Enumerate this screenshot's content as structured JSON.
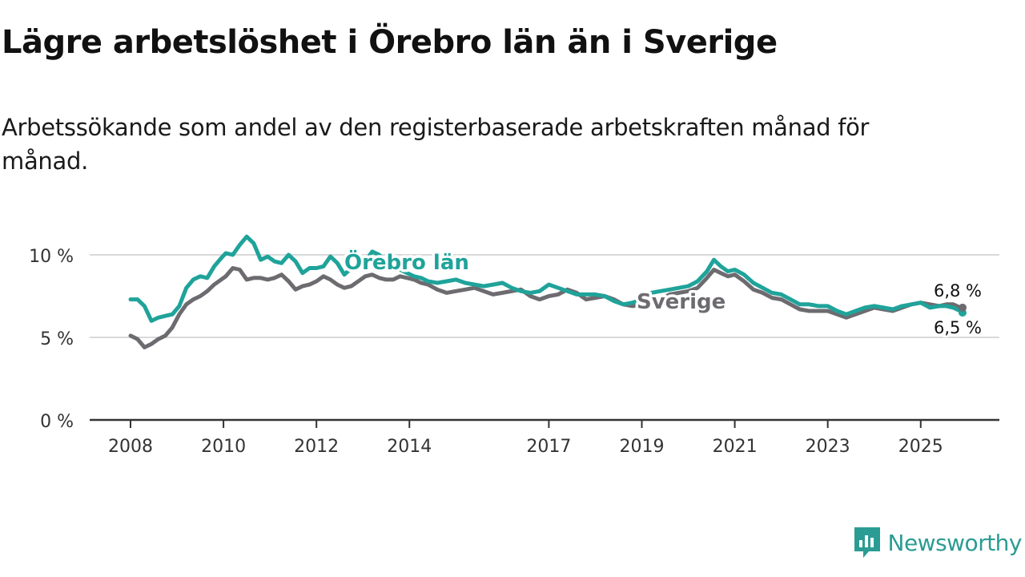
{
  "title": "Lägre arbetslöshet i Örebro län än i Sverige",
  "subtitle": "Arbetssökande som andel av den registerbaserade arbetskraften månad för månad.",
  "brand": {
    "name": "Newsworthy",
    "icon": "newsworthy-logo-icon",
    "color": "#2b9c93"
  },
  "chart_data": {
    "type": "line",
    "title": "Lägre arbetslöshet i Örebro län än i Sverige",
    "xlabel": "",
    "ylabel": "",
    "xlim": [
      2008,
      2025.9
    ],
    "ylim": [
      0,
      11
    ],
    "yticks": [
      0,
      5,
      10
    ],
    "ytick_labels": [
      "0 %",
      "5 %",
      "10 %"
    ],
    "xticks": [
      2008,
      2010,
      2012,
      2014,
      2017,
      2019,
      2021,
      2023,
      2025
    ],
    "xtick_labels": [
      "2008",
      "2010",
      "2012",
      "2014",
      "2017",
      "2019",
      "2021",
      "2023",
      "2025"
    ],
    "grid": true,
    "series": [
      {
        "name": "Örebro län",
        "color": "#1fa39a",
        "end_label": "6,5 %",
        "x": [
          2008.0,
          2008.15,
          2008.3,
          2008.45,
          2008.6,
          2008.75,
          2008.9,
          2009.05,
          2009.2,
          2009.35,
          2009.5,
          2009.65,
          2009.8,
          2009.95,
          2010.05,
          2010.2,
          2010.35,
          2010.5,
          2010.65,
          2010.8,
          2010.95,
          2011.1,
          2011.25,
          2011.4,
          2011.55,
          2011.7,
          2011.85,
          2012.0,
          2012.15,
          2012.3,
          2012.45,
          2012.6,
          2012.75,
          2012.9,
          2013.05,
          2013.2,
          2013.35,
          2013.5,
          2013.65,
          2013.8,
          2013.95,
          2014.1,
          2014.25,
          2014.4,
          2014.6,
          2014.8,
          2015.0,
          2015.2,
          2015.4,
          2015.6,
          2015.8,
          2016.0,
          2016.2,
          2016.4,
          2016.6,
          2016.8,
          2017.0,
          2017.2,
          2017.4,
          2017.6,
          2017.8,
          2018.0,
          2018.2,
          2018.4,
          2018.6,
          2018.8,
          2019.0,
          2019.2,
          2019.4,
          2019.6,
          2019.8,
          2020.0,
          2020.2,
          2020.4,
          2020.55,
          2020.7,
          2020.85,
          2021.0,
          2021.2,
          2021.4,
          2021.6,
          2021.8,
          2022.0,
          2022.2,
          2022.4,
          2022.6,
          2022.8,
          2023.0,
          2023.2,
          2023.4,
          2023.6,
          2023.8,
          2024.0,
          2024.2,
          2024.4,
          2024.6,
          2024.8,
          2025.0,
          2025.2,
          2025.4,
          2025.55,
          2025.7,
          2025.85,
          2025.9
        ],
        "y": [
          7.3,
          7.3,
          6.9,
          6.0,
          6.2,
          6.3,
          6.4,
          6.9,
          8.0,
          8.5,
          8.7,
          8.6,
          9.3,
          9.8,
          10.1,
          10.0,
          10.6,
          11.1,
          10.7,
          9.7,
          9.9,
          9.6,
          9.5,
          10.0,
          9.6,
          8.9,
          9.2,
          9.2,
          9.3,
          9.9,
          9.5,
          8.8,
          9.2,
          9.4,
          9.6,
          10.2,
          10.0,
          9.5,
          9.2,
          9.1,
          8.9,
          8.7,
          8.6,
          8.4,
          8.3,
          8.4,
          8.5,
          8.3,
          8.2,
          8.1,
          8.2,
          8.3,
          8.0,
          7.8,
          7.7,
          7.8,
          8.2,
          8.0,
          7.8,
          7.6,
          7.6,
          7.6,
          7.5,
          7.2,
          7.0,
          7.1,
          7.3,
          7.7,
          7.8,
          7.9,
          8.0,
          8.1,
          8.4,
          9.0,
          9.7,
          9.3,
          9.0,
          9.1,
          8.8,
          8.3,
          8.0,
          7.7,
          7.6,
          7.3,
          7.0,
          7.0,
          6.9,
          6.9,
          6.6,
          6.4,
          6.6,
          6.8,
          6.9,
          6.8,
          6.7,
          6.9,
          7.0,
          7.1,
          6.8,
          6.9,
          6.9,
          6.8,
          6.6,
          6.5
        ]
      },
      {
        "name": "Sverige",
        "color": "#6d6b70",
        "end_label": "6,8 %",
        "x": [
          2008.0,
          2008.15,
          2008.3,
          2008.45,
          2008.6,
          2008.75,
          2008.9,
          2009.05,
          2009.2,
          2009.35,
          2009.5,
          2009.65,
          2009.8,
          2009.95,
          2010.05,
          2010.2,
          2010.35,
          2010.5,
          2010.65,
          2010.8,
          2010.95,
          2011.1,
          2011.25,
          2011.4,
          2011.55,
          2011.7,
          2011.85,
          2012.0,
          2012.15,
          2012.3,
          2012.45,
          2012.6,
          2012.75,
          2012.9,
          2013.05,
          2013.2,
          2013.35,
          2013.5,
          2013.65,
          2013.8,
          2013.95,
          2014.1,
          2014.25,
          2014.4,
          2014.6,
          2014.8,
          2015.0,
          2015.2,
          2015.4,
          2015.6,
          2015.8,
          2016.0,
          2016.2,
          2016.4,
          2016.6,
          2016.8,
          2017.0,
          2017.2,
          2017.4,
          2017.6,
          2017.8,
          2018.0,
          2018.2,
          2018.4,
          2018.6,
          2018.8,
          2019.0,
          2019.2,
          2019.4,
          2019.6,
          2019.8,
          2020.0,
          2020.2,
          2020.4,
          2020.55,
          2020.7,
          2020.85,
          2021.0,
          2021.2,
          2021.4,
          2021.6,
          2021.8,
          2022.0,
          2022.2,
          2022.4,
          2022.6,
          2022.8,
          2023.0,
          2023.2,
          2023.4,
          2023.6,
          2023.8,
          2024.0,
          2024.2,
          2024.4,
          2024.6,
          2024.8,
          2025.0,
          2025.2,
          2025.4,
          2025.55,
          2025.7,
          2025.85,
          2025.9
        ],
        "y": [
          5.1,
          4.9,
          4.4,
          4.6,
          4.9,
          5.1,
          5.6,
          6.4,
          7.0,
          7.3,
          7.5,
          7.8,
          8.2,
          8.5,
          8.7,
          9.2,
          9.1,
          8.5,
          8.6,
          8.6,
          8.5,
          8.6,
          8.8,
          8.4,
          7.9,
          8.1,
          8.2,
          8.4,
          8.7,
          8.5,
          8.2,
          8.0,
          8.1,
          8.4,
          8.7,
          8.8,
          8.6,
          8.5,
          8.5,
          8.7,
          8.6,
          8.5,
          8.3,
          8.2,
          7.9,
          7.7,
          7.8,
          7.9,
          8.0,
          7.8,
          7.6,
          7.7,
          7.8,
          7.9,
          7.5,
          7.3,
          7.5,
          7.6,
          7.9,
          7.7,
          7.3,
          7.4,
          7.5,
          7.3,
          7.0,
          6.9,
          7.0,
          7.1,
          7.3,
          7.6,
          7.7,
          7.8,
          8.0,
          8.6,
          9.1,
          8.9,
          8.7,
          8.8,
          8.4,
          7.9,
          7.7,
          7.4,
          7.3,
          7.0,
          6.7,
          6.6,
          6.6,
          6.6,
          6.4,
          6.2,
          6.4,
          6.6,
          6.8,
          6.7,
          6.6,
          6.8,
          7.0,
          7.1,
          7.0,
          6.9,
          7.0,
          7.0,
          6.8,
          6.8
        ]
      }
    ]
  }
}
